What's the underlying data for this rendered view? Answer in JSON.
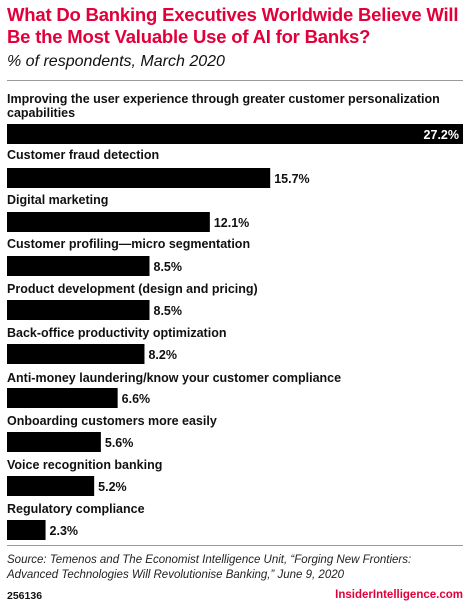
{
  "header": {
    "title": "What Do Banking Executives Worldwide Believe Will Be the Most Valuable Use of AI for Banks?",
    "subtitle": "% of respondents, March 2020"
  },
  "colors": {
    "accent": "#e2003b",
    "bar": "#000000",
    "value_inside": "#ffffff",
    "text": "#111111"
  },
  "chart_data": {
    "type": "bar",
    "orientation": "horizontal",
    "categories": [
      "Improving the user experience through greater customer personalization capabilities",
      "Customer fraud detection",
      "Digital marketing",
      "Customer profiling—micro segmentation",
      "Product development (design and pricing)",
      "Back-office productivity optimization",
      "Anti-money laundering/know your customer compliance",
      "Onboarding customers more easily",
      "Voice recognition banking",
      "Regulatory compliance"
    ],
    "values": [
      27.2,
      15.7,
      12.1,
      8.5,
      8.5,
      8.2,
      6.6,
      5.6,
      5.2,
      2.3
    ],
    "value_labels": [
      "27.2%",
      "15.7%",
      "12.1%",
      "8.5%",
      "8.5%",
      "8.2%",
      "6.6%",
      "5.6%",
      "5.2%",
      "2.3%"
    ],
    "title": "What Do Banking Executives Worldwide Believe Will Be the Most Valuable Use of AI for Banks?",
    "subtitle": "% of respondents, March 2020",
    "xlabel": "",
    "ylabel": "",
    "grid": false,
    "legend": "none"
  },
  "footer": {
    "source": "Source: Temenos and The Economist Intelligence Unit, “Forging New Frontiers: Advanced Technologies Will Revolutionise Banking,” June 9, 2020",
    "chart_id": "256136",
    "brand": "InsiderIntelligence.com"
  }
}
